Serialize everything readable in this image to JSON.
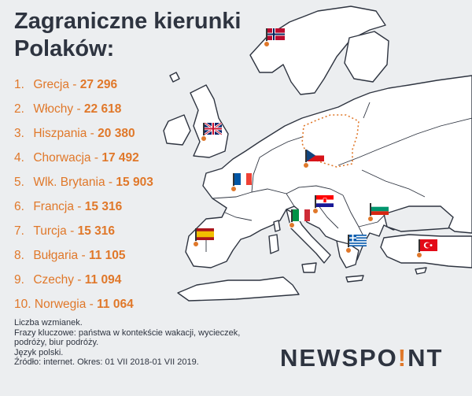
{
  "title": {
    "line1": "Zagraniczne kierunki",
    "line2": "Polaków:"
  },
  "ranking": [
    {
      "rank": "1.",
      "country": "Grecja",
      "value": "27 296"
    },
    {
      "rank": "2.",
      "country": "Włochy",
      "value": "22 618"
    },
    {
      "rank": "3.",
      "country": "Hiszpania",
      "value": "20 380"
    },
    {
      "rank": "4.",
      "country": "Chorwacja",
      "value": "17 492"
    },
    {
      "rank": "5.",
      "country": "Wlk. Brytania",
      "value": "15 903"
    },
    {
      "rank": "6.",
      "country": "Francja",
      "value": "15 316"
    },
    {
      "rank": "7.",
      "country": "Turcja",
      "value": "15 316"
    },
    {
      "rank": "8.",
      "country": "Bułgaria",
      "value": "11 105"
    },
    {
      "rank": "9.",
      "country": "Czechy",
      "value": "11 094"
    },
    {
      "rank": "10.",
      "country": "Norwegia",
      "value": "11 064"
    }
  ],
  "separator": " - ",
  "footnote": [
    "Liczba wzmianek.",
    "Frazy kluczowe: państwa w kontekście wakacji, wycieczek,",
    "podróży, biur podróży.",
    "Język polski.",
    "Źródło: internet. Okres: 01 VII 2018-01 VII 2019."
  ],
  "logo": {
    "before": "NEWSPO",
    "mark": "!",
    "after": "NT"
  },
  "colors": {
    "background": "#eceef0",
    "land": "#ffffff",
    "border": "#2e3440",
    "accent": "#e0782a",
    "text": "#2e3440",
    "poland_outline": "#e0782a"
  },
  "flags": [
    {
      "id": "norway",
      "icon": "flag-norway"
    },
    {
      "id": "uk",
      "icon": "flag-uk"
    },
    {
      "id": "czech",
      "icon": "flag-czech"
    },
    {
      "id": "france",
      "icon": "flag-france"
    },
    {
      "id": "croatia",
      "icon": "flag-croatia"
    },
    {
      "id": "italy",
      "icon": "flag-italy"
    },
    {
      "id": "bulgaria",
      "icon": "flag-bulgaria"
    },
    {
      "id": "spain",
      "icon": "flag-spain"
    },
    {
      "id": "greece",
      "icon": "flag-greece"
    },
    {
      "id": "turkey",
      "icon": "flag-turkey"
    }
  ]
}
